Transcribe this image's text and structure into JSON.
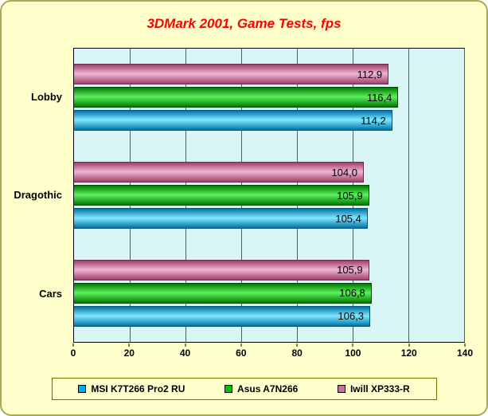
{
  "chart_data": {
    "type": "bar",
    "orientation": "horizontal",
    "title": "3DMark 2001, Game Tests, fps",
    "categories": [
      "Lobby",
      "Dragothic",
      "Cars"
    ],
    "series": [
      {
        "name": "MSI K7T266 Pro2 RU",
        "color": "#00AEEF",
        "color_dark": "#0073A8",
        "color_light": "#7FE8FF",
        "border": "#00557F",
        "values": [
          114.2,
          105.4,
          106.3
        ],
        "labels": [
          "114,2",
          "105,4",
          "106,3"
        ]
      },
      {
        "name": "Asus A7N266",
        "color": "#00C000",
        "color_dark": "#007A00",
        "color_light": "#5CF05C",
        "border": "#004D00",
        "values": [
          116.4,
          105.9,
          106.8
        ],
        "labels": [
          "116,4",
          "105,9",
          "106,8"
        ]
      },
      {
        "name": "Iwill XP333-R",
        "color": "#CC6E9E",
        "color_dark": "#A0406E",
        "color_light": "#F0B4D2",
        "border": "#6E2C4C",
        "values": [
          112.9,
          104.0,
          105.9
        ],
        "labels": [
          "112,9",
          "104,0",
          "105,9"
        ]
      }
    ],
    "bar_order_top_to_bottom": [
      "Iwill XP333-R",
      "Asus A7N266",
      "MSI K7T266 Pro2 RU"
    ],
    "xlim": [
      0,
      140
    ],
    "xticks": [
      0,
      20,
      40,
      60,
      80,
      100,
      120,
      140
    ],
    "grid": true,
    "legend_position": "bottom",
    "colors": {
      "page_background": "#FFFFCC",
      "plot_background": "#D9F5F5",
      "outer_border": "#A9A952",
      "gridline": "#446666",
      "title_text": "#FF0000"
    }
  }
}
